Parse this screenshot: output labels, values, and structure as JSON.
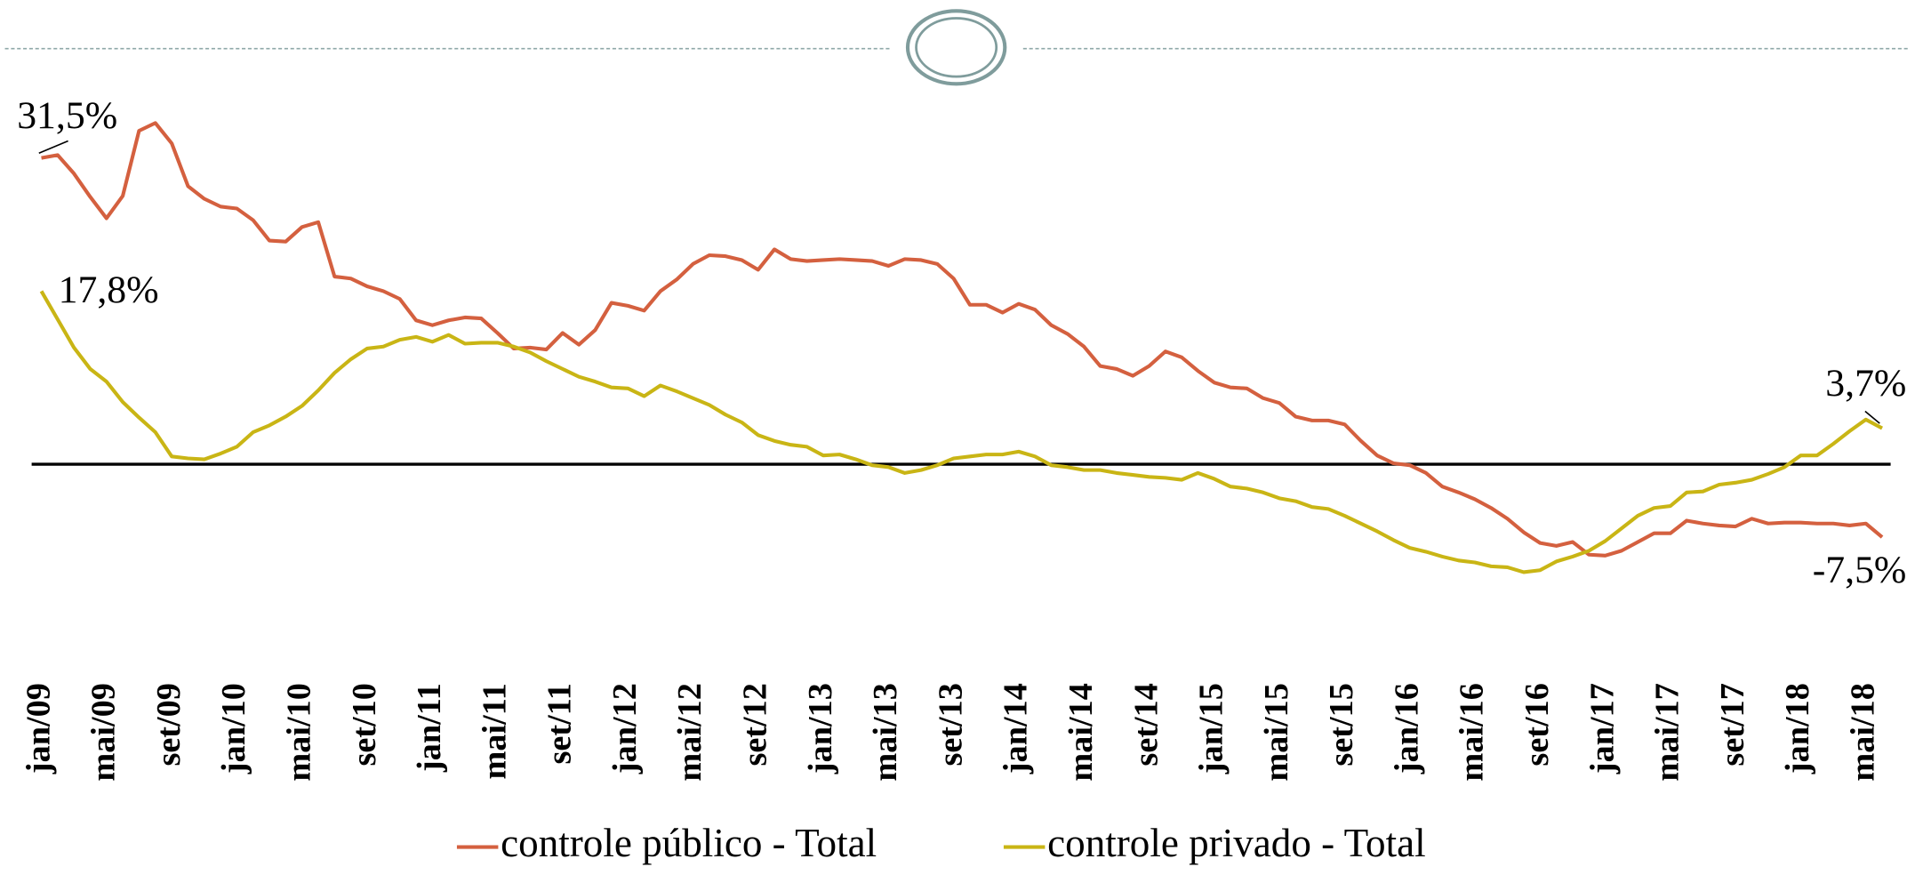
{
  "chart_data": {
    "type": "line",
    "categories": [
      "jan/09",
      null,
      null,
      null,
      "mai/09",
      null,
      null,
      null,
      "set/09",
      null,
      null,
      null,
      "jan/10",
      null,
      null,
      null,
      "mai/10",
      null,
      null,
      null,
      "set/10",
      null,
      null,
      null,
      "jan/11",
      null,
      null,
      null,
      "mai/11",
      null,
      null,
      null,
      "set/11",
      null,
      null,
      null,
      "jan/12",
      null,
      null,
      null,
      "mai/12",
      null,
      null,
      null,
      "set/12",
      null,
      null,
      null,
      "jan/13",
      null,
      null,
      null,
      "mai/13",
      null,
      null,
      null,
      "set/13",
      null,
      null,
      null,
      "jan/14",
      null,
      null,
      null,
      "mai/14",
      null,
      null,
      null,
      "set/14",
      null,
      null,
      null,
      "jan/15",
      null,
      null,
      null,
      "mai/15",
      null,
      null,
      null,
      "set/15",
      null,
      null,
      null,
      "jan/16",
      null,
      null,
      null,
      "mai/16",
      null,
      null,
      null,
      "set/16",
      null,
      null,
      null,
      "jan/17",
      null,
      null,
      null,
      "mai/17",
      null,
      null,
      null,
      "set/17",
      null,
      null,
      null,
      "jan/18",
      null,
      null,
      null,
      "mai/18",
      null
    ],
    "ylim": [
      -20,
      40
    ],
    "legend": "bottom",
    "series": [
      {
        "name": "controle público - Total",
        "color": "#d4603f",
        "values": [
          31.5,
          31.8,
          29.9,
          27.5,
          25.3,
          27.6,
          34.3,
          35.1,
          33,
          28.6,
          27.3,
          26.5,
          26.3,
          25.1,
          23,
          22.9,
          24.4,
          24.9,
          19.3,
          19.1,
          18.3,
          17.8,
          17,
          14.8,
          14.3,
          14.8,
          15.1,
          15,
          13.5,
          11.9,
          12,
          11.8,
          13.5,
          12.3,
          13.8,
          16.6,
          16.3,
          15.8,
          17.8,
          19,
          20.6,
          21.5,
          21.4,
          21,
          20,
          22.1,
          21.1,
          20.9,
          21,
          21.1,
          21,
          20.9,
          20.4,
          21.1,
          21,
          20.6,
          19.1,
          16.4,
          16.4,
          15.6,
          16.5,
          15.9,
          14.3,
          13.4,
          12.1,
          10.1,
          9.8,
          9.1,
          10.1,
          11.6,
          11,
          9.6,
          8.4,
          7.9,
          7.8,
          6.8,
          6.3,
          4.9,
          4.5,
          4.5,
          4.1,
          2.4,
          0.9,
          0.1,
          -0.1,
          -0.9,
          -2.3,
          -2.9,
          -3.6,
          -4.5,
          -5.6,
          -7,
          -8.1,
          -8.4,
          -8,
          -9.3,
          -9.4,
          -8.9,
          -8,
          -7.1,
          -7.1,
          -5.8,
          -6.1,
          -6.3,
          -6.4,
          -5.6,
          -6.1,
          -6,
          -6,
          -6.1,
          -6.1,
          -6.3,
          -6.1,
          -7.5
        ],
        "value_labels": [
          "31,5%",
          null,
          null,
          null,
          null,
          null,
          null,
          null,
          null,
          null,
          null,
          null,
          null,
          null,
          null,
          null,
          null,
          null,
          null,
          null,
          null,
          null,
          null,
          null,
          null,
          null,
          null,
          null,
          null,
          null,
          null,
          null,
          null,
          null,
          null,
          null,
          null,
          null,
          null,
          null,
          null,
          null,
          null,
          null,
          null,
          null,
          null,
          null,
          null,
          null,
          null,
          null,
          null,
          null,
          null,
          null,
          null,
          null,
          null,
          null,
          null,
          null,
          null,
          null,
          null,
          null,
          null,
          null,
          null,
          null,
          null,
          null,
          null,
          null,
          null,
          null,
          null,
          null,
          null,
          null,
          null,
          null,
          null,
          null,
          null,
          null,
          null,
          null,
          null,
          null,
          null,
          null,
          null,
          null,
          null,
          null,
          null,
          null,
          null,
          null,
          null,
          null,
          null,
          null,
          null,
          null,
          null,
          null,
          null,
          null,
          null,
          null,
          null,
          "-7,5%"
        ]
      },
      {
        "name": "controle privado - Total",
        "color": "#c9b515",
        "values": [
          17.8,
          14.9,
          12,
          9.8,
          8.5,
          6.4,
          4.8,
          3.3,
          0.8,
          0.6,
          0.5,
          1.1,
          1.8,
          3.3,
          4,
          4.9,
          6,
          7.6,
          9.4,
          10.8,
          11.9,
          12.1,
          12.8,
          13.1,
          12.6,
          13.3,
          12.4,
          12.5,
          12.5,
          12.1,
          11.5,
          10.6,
          9.8,
          9,
          8.5,
          7.9,
          7.8,
          7,
          8.1,
          7.5,
          6.8,
          6.1,
          5.1,
          4.3,
          3,
          2.4,
          2,
          1.8,
          0.9,
          1,
          0.5,
          -0.1,
          -0.3,
          -0.9,
          -0.6,
          -0.1,
          0.6,
          0.8,
          1,
          1,
          1.3,
          0.8,
          -0.1,
          -0.3,
          -0.6,
          -0.6,
          -0.9,
          -1.1,
          -1.3,
          -1.4,
          -1.6,
          -0.9,
          -1.5,
          -2.3,
          -2.5,
          -2.9,
          -3.5,
          -3.8,
          -4.4,
          -4.6,
          -5.3,
          -6.1,
          -6.9,
          -7.8,
          -8.6,
          -9,
          -9.5,
          -9.9,
          -10.1,
          -10.5,
          -10.6,
          -11.1,
          -10.9,
          -10,
          -9.5,
          -8.9,
          -7.9,
          -6.6,
          -5.3,
          -4.5,
          -4.3,
          -2.9,
          -2.8,
          -2.1,
          -1.9,
          -1.6,
          -1,
          -0.3,
          0.9,
          0.9,
          2.1,
          3.4,
          4.6,
          3.7
        ],
        "value_labels": [
          "17,8%",
          null,
          null,
          null,
          null,
          null,
          null,
          null,
          null,
          null,
          null,
          null,
          null,
          null,
          null,
          null,
          null,
          null,
          null,
          null,
          null,
          null,
          null,
          null,
          null,
          null,
          null,
          null,
          null,
          null,
          null,
          null,
          null,
          null,
          null,
          null,
          null,
          null,
          null,
          null,
          null,
          null,
          null,
          null,
          null,
          null,
          null,
          null,
          null,
          null,
          null,
          null,
          null,
          null,
          null,
          null,
          null,
          null,
          null,
          null,
          null,
          null,
          null,
          null,
          null,
          null,
          null,
          null,
          null,
          null,
          null,
          null,
          null,
          null,
          null,
          null,
          null,
          null,
          null,
          null,
          null,
          null,
          null,
          null,
          null,
          null,
          null,
          null,
          null,
          null,
          null,
          null,
          null,
          null,
          null,
          null,
          null,
          null,
          null,
          null,
          null,
          null,
          null,
          null,
          null,
          null,
          null,
          null,
          null,
          null,
          null,
          null,
          null,
          "3,7%"
        ]
      }
    ]
  }
}
